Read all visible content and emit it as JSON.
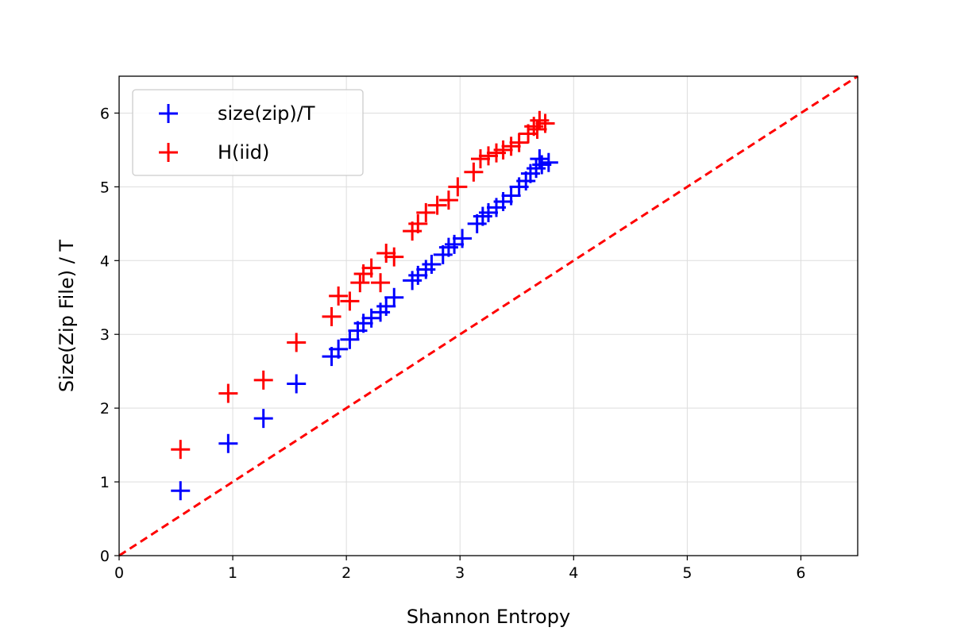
{
  "chart_data": {
    "type": "scatter",
    "title": "",
    "xlabel": "Shannon Entropy",
    "ylabel": "Size(Zip File) / T",
    "xlim": [
      0,
      6.5
    ],
    "ylim": [
      0,
      6.5
    ],
    "grid": true,
    "legend": "upper-left",
    "x_ticks": [
      "0",
      "1",
      "2",
      "3",
      "4",
      "5",
      "6"
    ],
    "y_ticks": [
      "0",
      "1",
      "2",
      "3",
      "4",
      "5",
      "6"
    ],
    "reference_line": {
      "style": "dashed",
      "color": "#ff0000",
      "from": [
        0,
        0
      ],
      "to": [
        6.5,
        6.5
      ]
    },
    "series": [
      {
        "name": "size(zip)/T",
        "color": "#0000ff",
        "marker": "plus",
        "points": [
          [
            0.54,
            0.88
          ],
          [
            0.96,
            1.52
          ],
          [
            1.27,
            1.86
          ],
          [
            1.56,
            2.33
          ],
          [
            1.87,
            2.7
          ],
          [
            1.93,
            2.8
          ],
          [
            2.03,
            2.93
          ],
          [
            2.1,
            3.05
          ],
          [
            2.15,
            3.15
          ],
          [
            2.22,
            3.22
          ],
          [
            2.3,
            3.3
          ],
          [
            2.35,
            3.38
          ],
          [
            2.42,
            3.5
          ],
          [
            2.58,
            3.73
          ],
          [
            2.63,
            3.8
          ],
          [
            2.7,
            3.88
          ],
          [
            2.75,
            3.95
          ],
          [
            2.85,
            4.08
          ],
          [
            2.9,
            4.18
          ],
          [
            2.95,
            4.22
          ],
          [
            3.02,
            4.3
          ],
          [
            3.15,
            4.5
          ],
          [
            3.2,
            4.6
          ],
          [
            3.25,
            4.65
          ],
          [
            3.32,
            4.72
          ],
          [
            3.38,
            4.8
          ],
          [
            3.45,
            4.88
          ],
          [
            3.52,
            5.0
          ],
          [
            3.58,
            5.08
          ],
          [
            3.62,
            5.18
          ],
          [
            3.67,
            5.25
          ],
          [
            3.72,
            5.3
          ],
          [
            3.78,
            5.33
          ],
          [
            3.7,
            5.38
          ]
        ]
      },
      {
        "name": "H(iid)",
        "color": "#ff0000",
        "marker": "plus",
        "points": [
          [
            0.54,
            1.44
          ],
          [
            0.96,
            2.2
          ],
          [
            1.27,
            2.38
          ],
          [
            1.56,
            2.89
          ],
          [
            1.87,
            3.24
          ],
          [
            1.93,
            3.52
          ],
          [
            2.03,
            3.45
          ],
          [
            2.12,
            3.7
          ],
          [
            2.15,
            3.82
          ],
          [
            2.22,
            3.9
          ],
          [
            2.3,
            3.7
          ],
          [
            2.35,
            4.1
          ],
          [
            2.42,
            4.05
          ],
          [
            2.58,
            4.4
          ],
          [
            2.63,
            4.5
          ],
          [
            2.7,
            4.65
          ],
          [
            2.8,
            4.75
          ],
          [
            2.9,
            4.82
          ],
          [
            2.98,
            5.0
          ],
          [
            3.12,
            5.2
          ],
          [
            3.18,
            5.38
          ],
          [
            3.25,
            5.42
          ],
          [
            3.32,
            5.46
          ],
          [
            3.38,
            5.5
          ],
          [
            3.45,
            5.55
          ],
          [
            3.52,
            5.6
          ],
          [
            3.6,
            5.72
          ],
          [
            3.65,
            5.82
          ],
          [
            3.7,
            5.9
          ],
          [
            3.75,
            5.86
          ],
          [
            3.68,
            5.78
          ]
        ]
      }
    ]
  }
}
